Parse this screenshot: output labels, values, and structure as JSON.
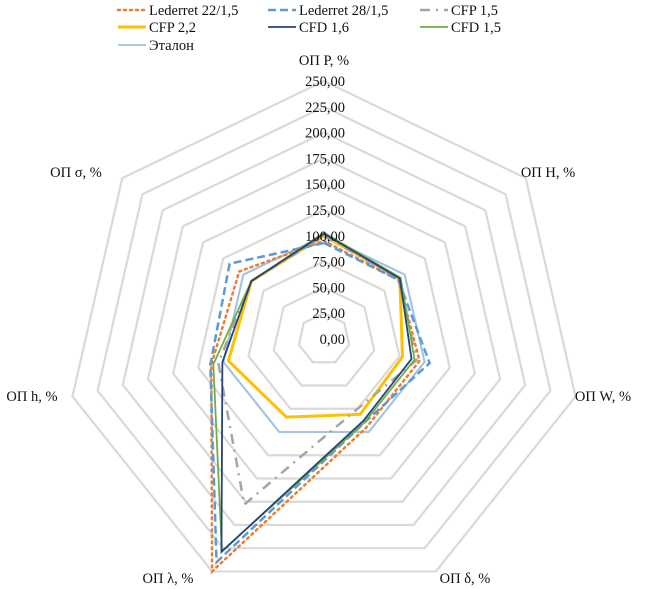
{
  "chart_data": {
    "type": "radar",
    "title": "",
    "axes": [
      "ОП Р, %",
      "ОП Н, %",
      "ОП W, %",
      "ОП δ, %",
      "ОП λ, %",
      "ОП h, %",
      "ОП σ, %"
    ],
    "rlim": [
      0,
      250
    ],
    "ticks": [
      "0,00",
      "25,00",
      "50,00",
      "75,00",
      "100,00",
      "125,00",
      "150,00",
      "175,00",
      "200,00",
      "225,00",
      "250,00"
    ],
    "tick_values": [
      0,
      25,
      50,
      75,
      100,
      125,
      150,
      175,
      200,
      225,
      250
    ],
    "grid": true,
    "legend_position": "top",
    "series": [
      {
        "name": "Lederret 22/1,5",
        "color": "#ED7D31",
        "style": "dotted",
        "values": [
          95,
          92,
          95,
          95,
          250,
          112,
          105
        ]
      },
      {
        "name": "Lederret 28/1,5",
        "color": "#5B9BD5",
        "style": "dashed",
        "values": [
          93,
          92,
          105,
          90,
          240,
          113,
          117
        ]
      },
      {
        "name": "CFP 1,5",
        "color": "#A5A5A5",
        "style": "dashdot",
        "values": [
          100,
          93,
          92,
          75,
          178,
          105,
          90
        ]
      },
      {
        "name": "CFP 2,2",
        "color": "#FFC000",
        "style": "solid-thick",
        "values": [
          100,
          94,
          78,
          81,
          84,
          95,
          90
        ]
      },
      {
        "name": "CFD 1,6",
        "color": "#264478",
        "style": "solid",
        "values": [
          102,
          94,
          87,
          88,
          229,
          101,
          90
        ]
      },
      {
        "name": "CFD 1,5",
        "color": "#70AD47",
        "style": "solid",
        "values": [
          103,
          95,
          90,
          90,
          228,
          110,
          90
        ]
      },
      {
        "name": "Эталон",
        "color": "#9DC3E6",
        "style": "solid",
        "values": [
          100,
          100,
          100,
          100,
          100,
          100,
          100
        ]
      }
    ]
  }
}
